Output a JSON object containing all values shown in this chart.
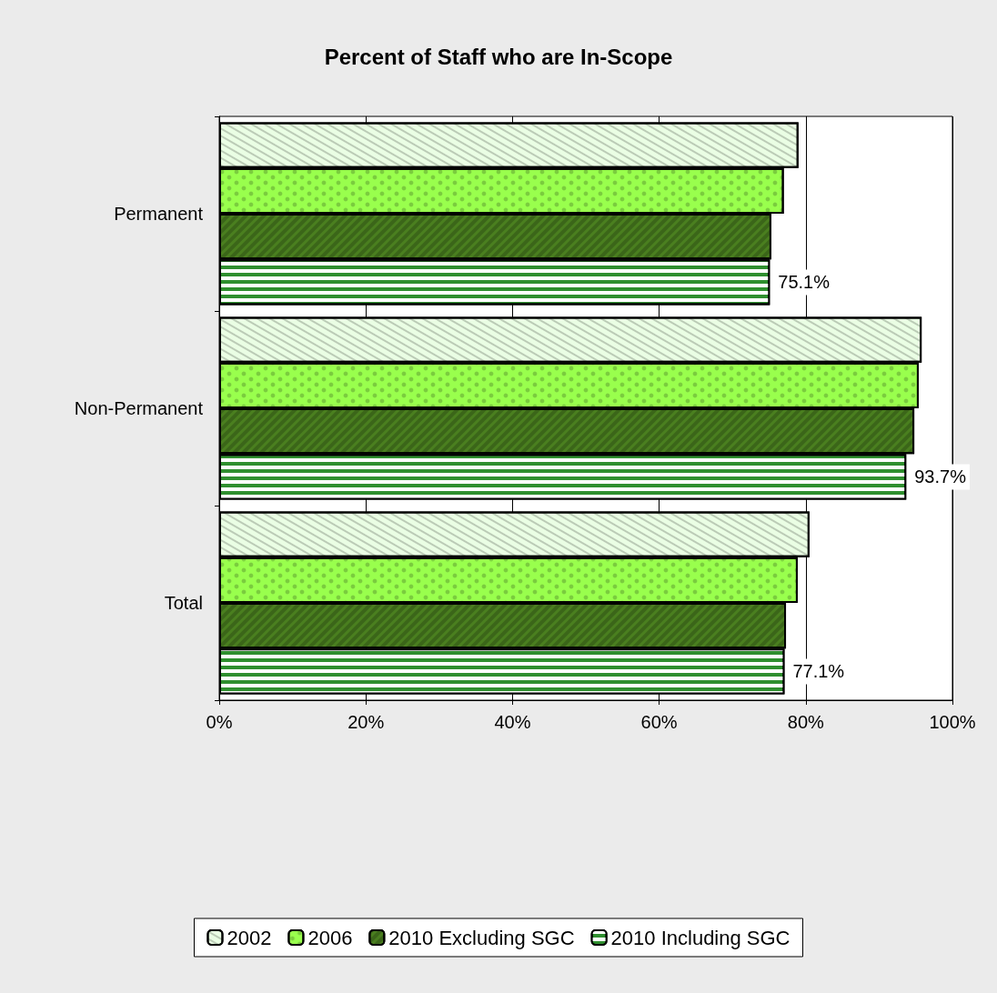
{
  "chart_data": {
    "type": "bar",
    "orientation": "horizontal",
    "title": "Percent of Staff who are In-Scope",
    "categories": [
      "Permanent",
      "Non-Permanent",
      "Total"
    ],
    "series": [
      {
        "name": "2002",
        "color": "#eafee4",
        "values": [
          79.0,
          95.8,
          80.5
        ]
      },
      {
        "name": "2006",
        "color": "#99ff4d",
        "values": [
          77.0,
          95.4,
          78.9
        ]
      },
      {
        "name": "2010 Excluding SGC",
        "color": "#4a7f1f",
        "values": [
          75.3,
          94.8,
          77.3
        ]
      },
      {
        "name": "2010 Including SGC",
        "color": "#2f8f2f",
        "values": [
          75.1,
          93.7,
          77.1
        ],
        "value_labels": [
          "75.1%",
          "93.7%",
          "77.1%"
        ]
      }
    ],
    "xlim": [
      0,
      100
    ],
    "xticks": [
      {
        "value": 0,
        "label": "0%"
      },
      {
        "value": 20,
        "label": "20%"
      },
      {
        "value": 40,
        "label": "40%"
      },
      {
        "value": 60,
        "label": "60%"
      },
      {
        "value": 80,
        "label": "80%"
      },
      {
        "value": 100,
        "label": "100%"
      }
    ],
    "grid": "x",
    "legend": "bottom"
  }
}
